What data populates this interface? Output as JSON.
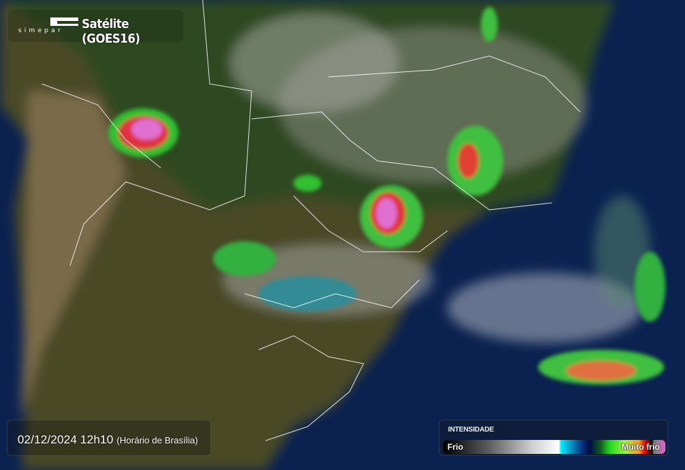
{
  "header": {
    "logo_text": "SIMEPAR",
    "title": "Satélite (GOES16)"
  },
  "timestamp": {
    "datetime": "02/12/2024 12h10",
    "timezone": "(Horário de Brasília)"
  },
  "legend": {
    "title": "INTENSIDADE",
    "low_label": "Frio",
    "high_label": "Muito frio",
    "colors": [
      "#000000",
      "#5a5a5a",
      "#ffffff",
      "#00f0ff",
      "#0a3a8a",
      "#22d820",
      "#a0f040",
      "#ff9a20",
      "#e00010",
      "#e060d0"
    ]
  },
  "map": {
    "ocean_color": "#0b2250",
    "land_color": "#4a4a28"
  }
}
